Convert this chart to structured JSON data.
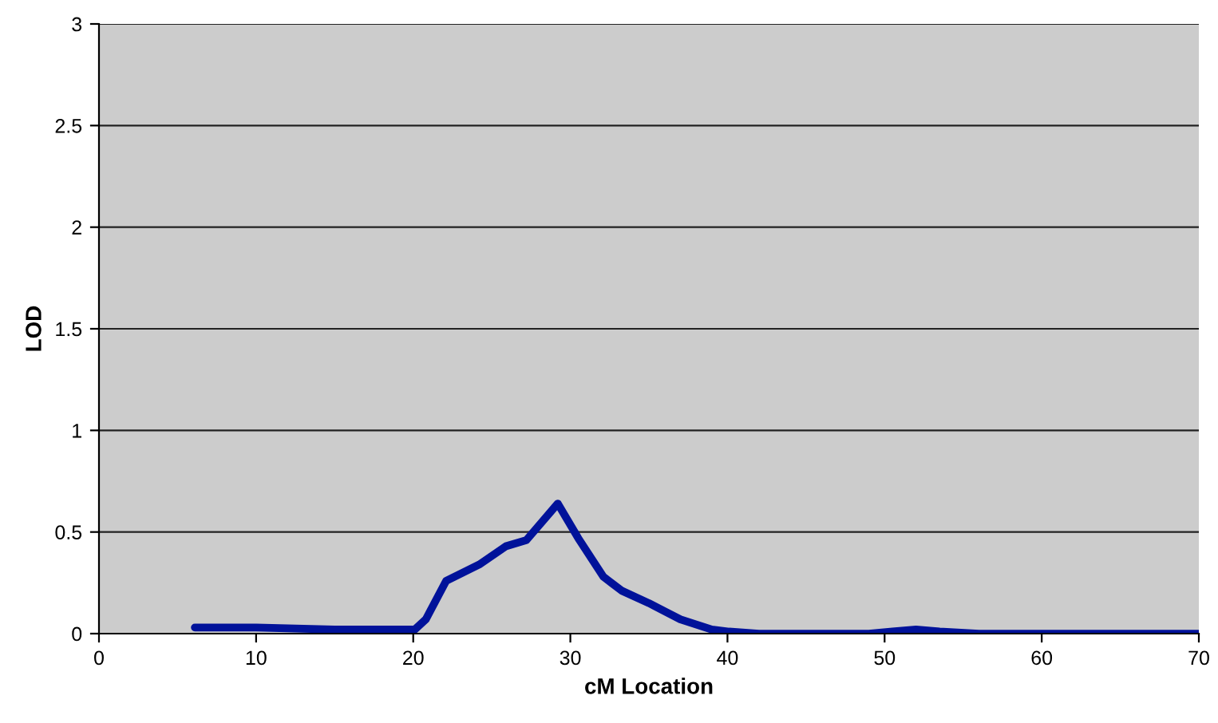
{
  "chart_data": {
    "type": "line",
    "xlabel": "cM Location",
    "ylabel": "LOD",
    "series": [
      {
        "color": "#00129a",
        "x": [
          6.1,
          10,
          15,
          20.1,
          20.8,
          22.1,
          24.2,
          25.9,
          27.2,
          29.2,
          30.5,
          32.1,
          33.3,
          35,
          37,
          39,
          40.1,
          42,
          45,
          49,
          50.5,
          52,
          53.5,
          56,
          60,
          65,
          70
        ],
        "values": [
          0.03,
          0.03,
          0.02,
          0.02,
          0.07,
          0.26,
          0.34,
          0.43,
          0.46,
          0.64,
          0.47,
          0.28,
          0.21,
          0.15,
          0.07,
          0.02,
          0.01,
          0,
          0,
          0,
          0.01,
          0.02,
          0.01,
          0,
          0,
          0,
          0
        ]
      }
    ],
    "xlim": [
      0,
      70
    ],
    "xticks": [
      0,
      10,
      20,
      30,
      40,
      50,
      60,
      70
    ],
    "ylim": [
      0,
      3
    ],
    "yticks": [
      0,
      0.5,
      1,
      1.5,
      2,
      2.5,
      3
    ],
    "grid": "y",
    "legend": false,
    "marker": "none",
    "line_style": "solid"
  }
}
